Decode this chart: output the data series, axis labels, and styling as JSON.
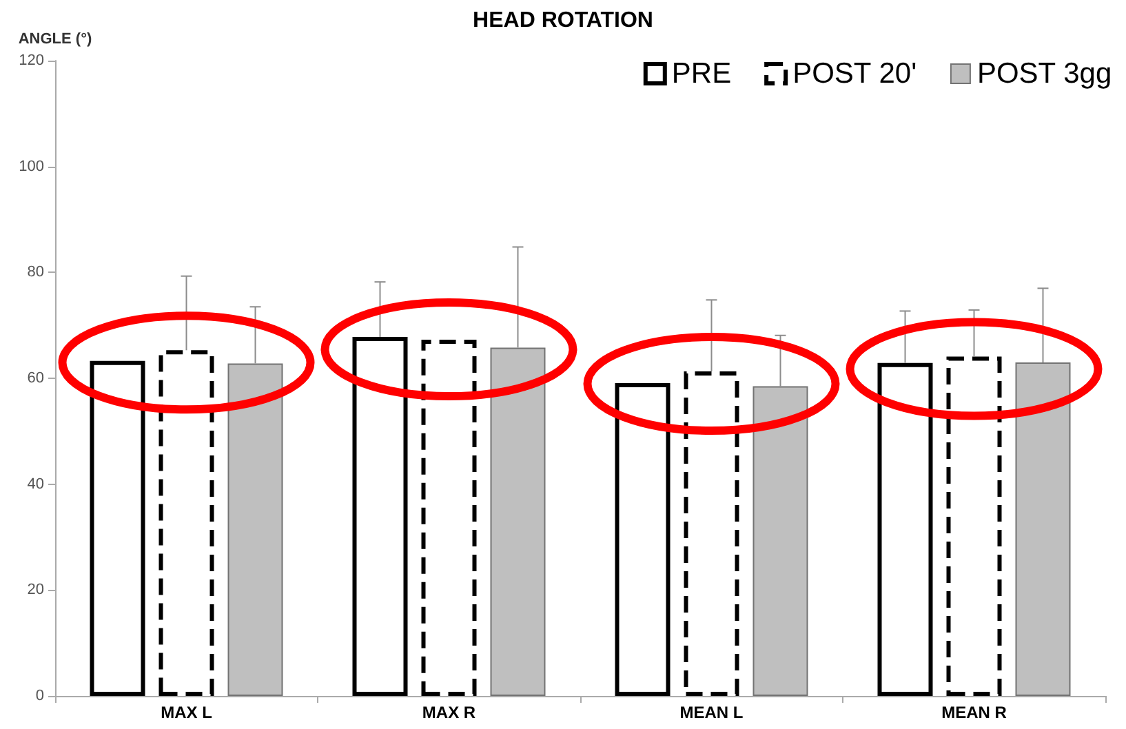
{
  "chart_data": {
    "type": "bar",
    "title": "HEAD ROTATION",
    "ylabel": "ANGLE (°)",
    "categories": [
      "MAX L",
      "MAX R",
      "MEAN L",
      "MEAN R"
    ],
    "series": [
      {
        "name": "PRE",
        "color": "#000000",
        "line_style": "solid",
        "values": [
          63.3,
          67.8,
          59.1,
          62.9
        ],
        "errors": [
          null,
          [
            67.8,
            78.2
          ],
          null,
          [
            62.9,
            72.7
          ]
        ]
      },
      {
        "name": "POST 20'",
        "color": "#000000",
        "line_style": "dashed",
        "values": [
          65.3,
          67.3,
          61.3,
          64.1
        ],
        "errors": [
          [
            65.3,
            79.3
          ],
          null,
          [
            61.3,
            74.8
          ],
          [
            64.1,
            72.9
          ]
        ]
      },
      {
        "name": "POST 3gg",
        "color": "#bfbfbf",
        "values": [
          62.8,
          65.8,
          58.5,
          63.0
        ],
        "errors": [
          [
            62.8,
            73.5
          ],
          [
            65.8,
            84.8
          ],
          [
            58.5,
            68.1
          ],
          [
            63.0,
            77.0
          ]
        ]
      }
    ],
    "ylim": [
      0,
      120
    ],
    "yticks": [
      0,
      20,
      40,
      60,
      80,
      100,
      120
    ],
    "grid": false,
    "legend": "top right"
  }
}
